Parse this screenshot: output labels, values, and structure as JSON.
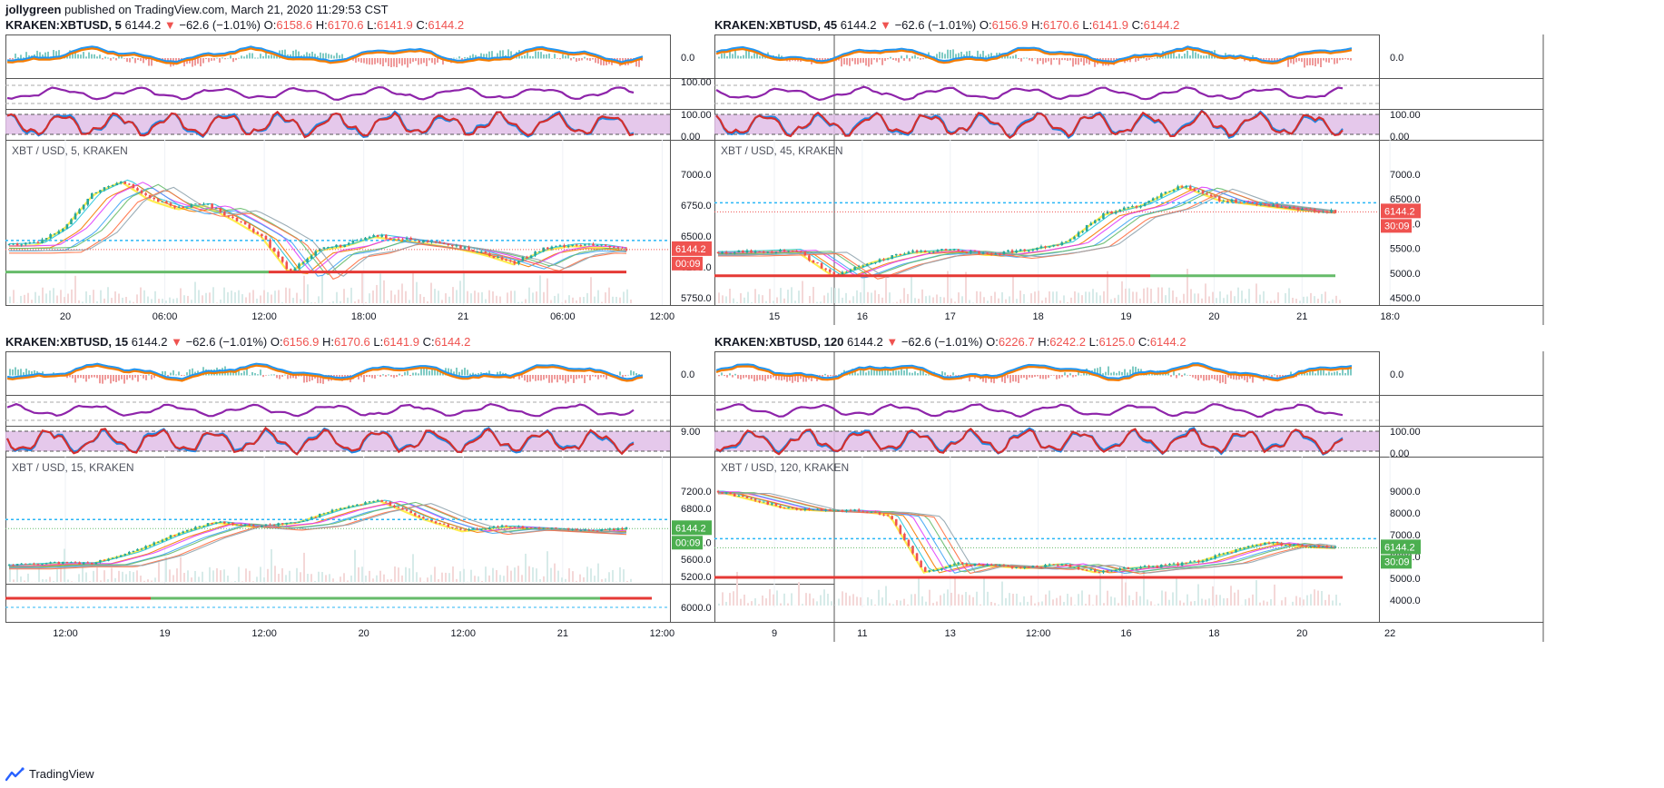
{
  "header": {
    "author": "jollygreen",
    "published": "published on TradingView.com, March 21, 2020 11:29:53 CST"
  },
  "footer": {
    "brand": "TradingView"
  },
  "colors": {
    "up": "#26a69a",
    "down": "#ef5350",
    "macd": "#2196f3",
    "signal": "#f57c00",
    "rsi": "#8e24aa",
    "stoch_fill": "#e1bee7",
    "stoch_k": "#d32f2f",
    "stoch_d": "#1e88e5",
    "last_price_bg": "#ef5350",
    "last_price_bg_green": "#4caf50"
  },
  "panels": [
    {
      "symbol": "KRAKEN:XBTUSD, 5",
      "last": "6144.2",
      "arrow": "▼",
      "change": "−62.6 (−1.01%)",
      "o_label": "O:",
      "o": "6158.6",
      "h_label": "H:",
      "h": "6170.6",
      "l_label": "L:",
      "l": "6141.9",
      "c_label": "C:",
      "c": "6144.2",
      "chart_label": "XBT / USD, 5, KRAKEN",
      "macd_zero": "0.0",
      "rsi_label": "100.00",
      "stoch_top": "100.00",
      "stoch_bottom": "0.00",
      "price_ticks": [
        "7000.0",
        "6750.0",
        "6500.0",
        "6250.0",
        "5750.0"
      ],
      "last_price_tag": "6144.2",
      "countdown": "00:09",
      "tag_color": "red",
      "x_ticks": [
        "20",
        "06:00",
        "12:00",
        "18:00",
        "21",
        "06:00",
        "12:00"
      ]
    },
    {
      "symbol": "KRAKEN:XBTUSD, 45",
      "last": "6144.2",
      "arrow": "▼",
      "change": "−62.6 (−1.01%)",
      "o_label": "O:",
      "o": "6156.9",
      "h_label": "H:",
      "h": "6170.6",
      "l_label": "L:",
      "l": "6141.9",
      "c_label": "C:",
      "c": "6144.2",
      "chart_label": "XBT / USD, 45, KRAKEN",
      "macd_zero": "0.0",
      "rsi_label": "",
      "stoch_top": "100.00",
      "stoch_bottom": "0.00",
      "price_ticks": [
        "7000.0",
        "6500.0",
        "6000.0",
        "5500.0",
        "5000.0",
        "4500.0"
      ],
      "last_price_tag": "6144.2",
      "countdown": "30:09",
      "tag_color": "red",
      "x_ticks": [
        "15",
        "16",
        "17",
        "18",
        "19",
        "20",
        "21",
        "18:0"
      ]
    },
    {
      "symbol": "KRAKEN:XBTUSD, 15",
      "last": "6144.2",
      "arrow": "▼",
      "change": "−62.6 (−1.01%)",
      "o_label": "O:",
      "o": "6156.9",
      "h_label": "H:",
      "h": "6170.6",
      "l_label": "L:",
      "l": "6141.9",
      "c_label": "C:",
      "c": "6144.2",
      "chart_label": "XBT / USD, 15, KRAKEN",
      "macd_zero": "0.0",
      "rsi_label": "",
      "stoch_top": "9.00",
      "stoch_bottom": "",
      "price_ticks": [
        "7200.0",
        "6800.0",
        "6400.0",
        "6000.0",
        "5600.0",
        "5200.0"
      ],
      "extra_tick": "6000.0",
      "last_price_tag": "6144.2",
      "countdown": "00:09",
      "tag_color": "green",
      "x_ticks": [
        "12:00",
        "19",
        "12:00",
        "20",
        "12:00",
        "21",
        "12:00"
      ]
    },
    {
      "symbol": "KRAKEN:XBTUSD, 120",
      "last": "6144.2",
      "arrow": "▼",
      "change": "−62.6 (−1.01%)",
      "o_label": "O:",
      "o": "6226.7",
      "h_label": "H:",
      "h": "6242.2",
      "l_label": "L:",
      "l": "6125.0",
      "c_label": "C:",
      "c": "6144.2",
      "chart_label": "XBT / USD, 120, KRAKEN",
      "macd_zero": "0.0",
      "rsi_label": "",
      "stoch_top": "100.00",
      "stoch_bottom": "0.00",
      "price_ticks": [
        "9000.0",
        "8000.0",
        "7000.0",
        "6000.0",
        "5000.0",
        "4000.0"
      ],
      "last_price_tag": "6144.2",
      "countdown": "30:09",
      "tag_color": "green",
      "x_ticks": [
        "9",
        "11",
        "13",
        "12:00",
        "16",
        "18",
        "20",
        "22"
      ]
    }
  ],
  "chart_data": [
    {
      "type": "line",
      "title": "XBT / USD, 5, KRAKEN",
      "series": [
        {
          "name": "XBT / USD",
          "values": [
            6200,
            6210,
            6400,
            6760,
            6900,
            6700,
            6600,
            6640,
            6480,
            6300,
            5900,
            6150,
            6200,
            6300,
            6260,
            6220,
            6170,
            6100,
            6000,
            6150,
            6200,
            6190,
            6144.2
          ]
        }
      ],
      "ylim": [
        5600,
        7100
      ]
    },
    {
      "type": "line",
      "title": "XBT / USD, 45, KRAKEN",
      "series": [
        {
          "name": "XBT / USD",
          "values": [
            5300,
            5320,
            5350,
            4800,
            5100,
            5300,
            5350,
            5250,
            5350,
            5500,
            6100,
            6300,
            6700,
            6400,
            6300,
            6200,
            6144.2
          ]
        }
      ],
      "ylim": [
        4300,
        7200
      ]
    },
    {
      "type": "line",
      "title": "XBT / USD, 15, KRAKEN",
      "series": [
        {
          "name": "XBT / USD",
          "values": [
            5300,
            5350,
            5350,
            5600,
            6000,
            6300,
            6200,
            6300,
            6600,
            6800,
            6400,
            6100,
            6200,
            6150,
            6100,
            6144.2
          ]
        }
      ],
      "ylim": [
        5000,
        7300
      ]
    },
    {
      "type": "line",
      "title": "XBT / USD, 120, KRAKEN",
      "series": [
        {
          "name": "XBT / USD",
          "values": [
            8800,
            8400,
            8000,
            7900,
            7900,
            7700,
            5000,
            5400,
            5300,
            5200,
            5400,
            5000,
            5200,
            5300,
            5500,
            6000,
            6400,
            6200,
            6144.2
          ]
        }
      ],
      "ylim": [
        3600,
        9400
      ]
    }
  ]
}
